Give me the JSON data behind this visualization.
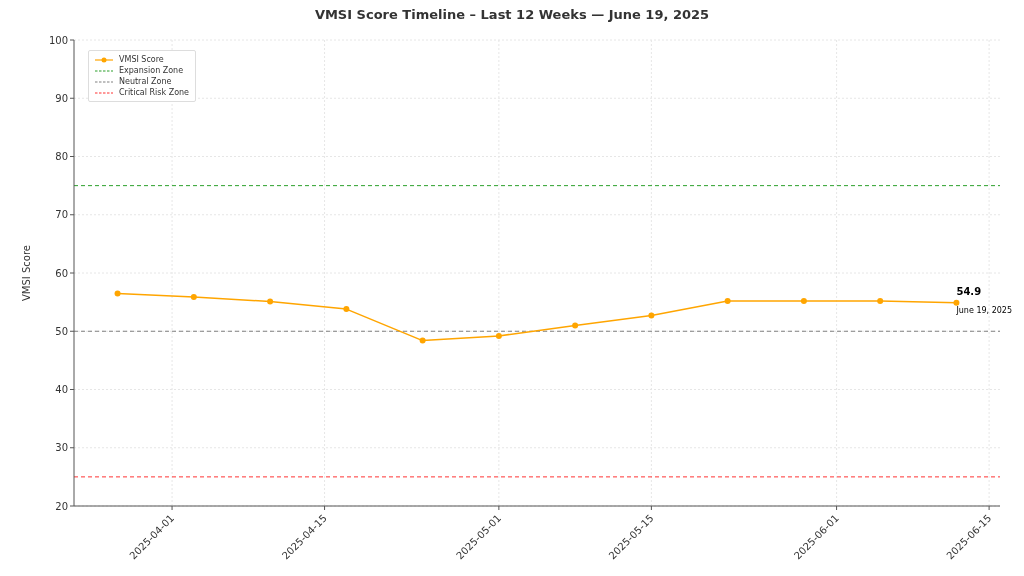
{
  "chart_data": {
    "type": "line",
    "title": "VMSI Score Timeline – Last 12 Weeks — June 19, 2025",
    "ylabel": "VMSI Score",
    "x": [
      "2025-03-27",
      "2025-04-03",
      "2025-04-10",
      "2025-04-17",
      "2025-04-24",
      "2025-05-01",
      "2025-05-08",
      "2025-05-15",
      "2025-05-22",
      "2025-05-29",
      "2025-06-05",
      "2025-06-12"
    ],
    "series": [
      {
        "name": "VMSI Score",
        "color": "#ffa500",
        "values": [
          56.5,
          55.9,
          55.1,
          53.8,
          48.4,
          49.2,
          51.0,
          52.7,
          55.2,
          55.2,
          55.2,
          54.9
        ]
      }
    ],
    "xlim": [
      "2025-03-23",
      "2025-06-16"
    ],
    "xticks": [
      "2025-04-01",
      "2025-04-15",
      "2025-05-01",
      "2025-05-15",
      "2025-06-01",
      "2025-06-15"
    ],
    "ylim": [
      20,
      100
    ],
    "yticks": [
      20,
      30,
      40,
      50,
      60,
      70,
      80,
      90,
      100
    ],
    "ref_lines": [
      {
        "axis": "y",
        "value": 75,
        "label": "Expansion Zone",
        "color": "#2ca02c",
        "line_style": "dashed"
      },
      {
        "axis": "y",
        "value": 50,
        "label": "Neutral Zone",
        "color": "#808080",
        "line_style": "dashed"
      },
      {
        "axis": "y",
        "value": 25,
        "label": "Critical Risk Zone",
        "color": "#ff3333",
        "line_style": "dashed"
      }
    ],
    "annotations": [
      {
        "text": "54.9",
        "x": "2025-06-12",
        "y": 54.9
      },
      {
        "text": "June 19, 2025",
        "x": "2025-06-12",
        "y": 54.9
      }
    ],
    "grid": true,
    "legend": "top left",
    "marker": "circle",
    "line_style": "solid"
  }
}
